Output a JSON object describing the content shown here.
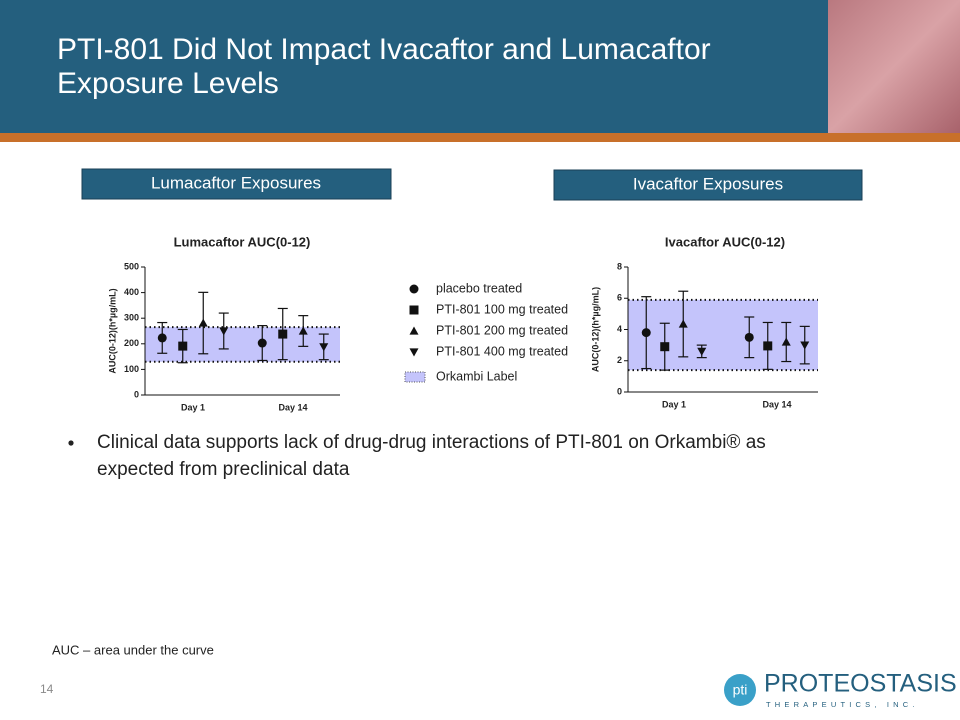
{
  "title_lines": [
    "PTI-801 Did Not Impact Ivacaftor and Lumacaftor",
    "Exposure Levels"
  ],
  "section_labels": [
    "Lumacaftor Exposures",
    "Ivacaftor Exposures"
  ],
  "bullet_lines": [
    "Clinical data supports lack of drug-drug interactions of PTI-801 on Orkambi® as",
    "expected from preclinical data"
  ],
  "footnote": "AUC – area under the curve",
  "page_number": "14",
  "logo": {
    "icon": "pti",
    "name": "PROTEOSTASIS",
    "tagline": "THERAPEUTICS, INC."
  },
  "chart_data": [
    {
      "type": "scatter",
      "title": "Lumacaftor AUC(0-12)",
      "y_label": "AUC(0-12)(h*µg/mL)",
      "categories": [
        "Day 1",
        "Day 14"
      ],
      "ylim": [
        0,
        500
      ],
      "yticks": [
        0,
        100,
        200,
        300,
        400,
        500
      ],
      "band": [
        130,
        265
      ],
      "band_label": "Orkambi Label",
      "band_color": "#c4c4fb",
      "series": [
        {
          "name": "placebo treated",
          "marker": "circle",
          "color": "#111111",
          "values": [
            223,
            203
          ],
          "errors": [
            60,
            68
          ]
        },
        {
          "name": "PTI-801 100 mg treated",
          "marker": "square",
          "color": "#111111",
          "values": [
            191,
            238
          ],
          "errors": [
            65,
            100
          ]
        },
        {
          "name": "PTI-801 200 mg treated",
          "marker": "triangle-up",
          "color": "#111111",
          "values": [
            281,
            250
          ],
          "errors": [
            120,
            60
          ]
        },
        {
          "name": "PTI-801 400 mg treated",
          "marker": "triangle-down",
          "color": "#111111",
          "values": [
            250,
            188
          ],
          "errors": [
            70,
            50
          ]
        }
      ]
    },
    {
      "type": "scatter",
      "title": "Ivacaftor AUC(0-12)",
      "y_label": "AUC(0-12)(h*µg/mL)",
      "categories": [
        "Day 1",
        "Day 14"
      ],
      "ylim": [
        0,
        8
      ],
      "yticks": [
        0,
        2,
        4,
        6,
        8
      ],
      "band": [
        1.4,
        5.9
      ],
      "band_color": "#c4c4fb",
      "series": [
        {
          "marker": "circle",
          "color": "#111111",
          "values": [
            3.8,
            3.5
          ],
          "errors": [
            2.3,
            1.3
          ]
        },
        {
          "marker": "square",
          "color": "#111111",
          "values": [
            2.9,
            2.95
          ],
          "errors": [
            1.5,
            1.5
          ]
        },
        {
          "marker": "triangle-up",
          "color": "#111111",
          "values": [
            4.35,
            3.2
          ],
          "errors": [
            2.1,
            1.25
          ]
        },
        {
          "marker": "triangle-down",
          "color": "#111111",
          "values": [
            2.6,
            3.0
          ],
          "errors": [
            0.4,
            1.2
          ]
        }
      ]
    }
  ]
}
